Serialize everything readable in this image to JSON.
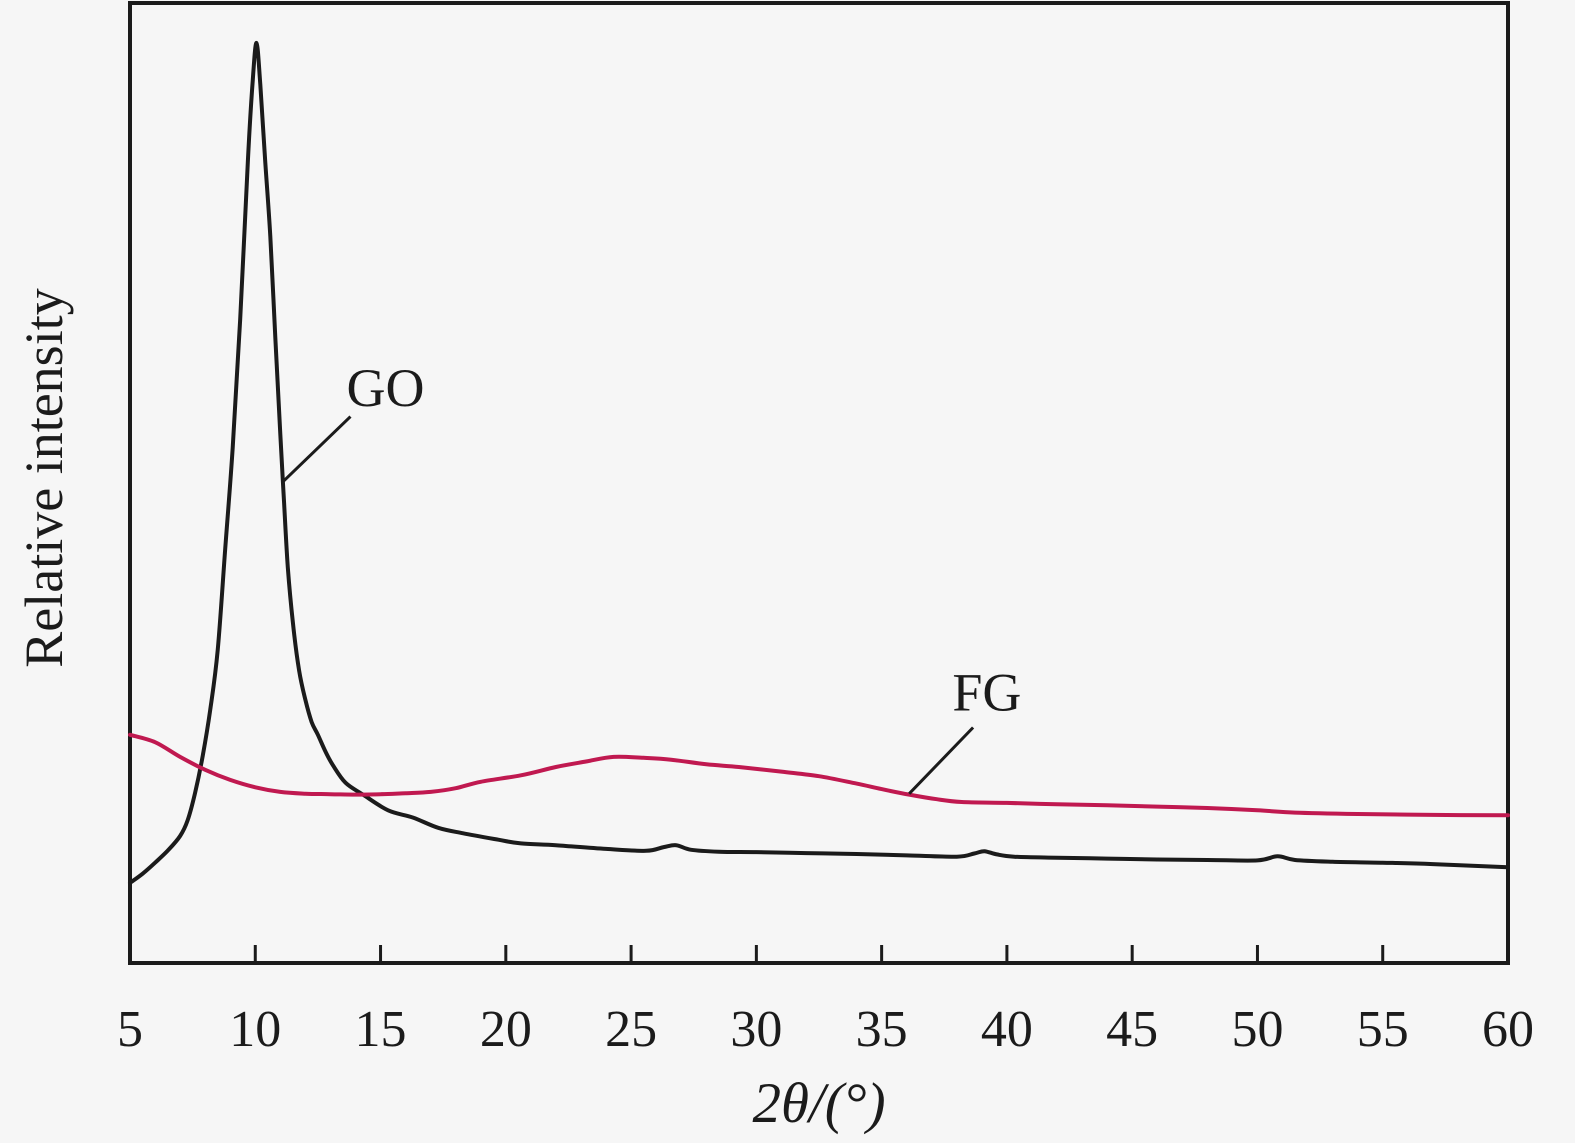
{
  "figure": {
    "background_color": "#f6f6f6",
    "frame_color": "#1b1b1b",
    "description": "XRD pattern comparing GO and FG"
  },
  "chart_data": {
    "type": "line",
    "title": "",
    "xlabel": "2θ/(°)",
    "ylabel": "Relative intensity",
    "xlim": [
      5,
      60
    ],
    "ylim": [
      0,
      105
    ],
    "x_ticks": [
      5,
      10,
      15,
      20,
      25,
      30,
      35,
      40,
      45,
      50,
      55,
      60
    ],
    "y_ticks": [],
    "grid": false,
    "legend_position": "none",
    "frame": "full-box, ticks inside on bottom axis only, y axis unnumbered (relative units)",
    "series": [
      {
        "name": "GO",
        "color": "#1b1b1b",
        "stroke_width": 4,
        "peaks_deg": [
          10.0
        ],
        "points": [
          [
            5.0,
            8.7
          ],
          [
            5.5,
            9.7
          ],
          [
            6.0,
            10.9
          ],
          [
            6.5,
            12.2
          ],
          [
            7.0,
            13.8
          ],
          [
            7.3,
            15.5
          ],
          [
            7.6,
            18.5
          ],
          [
            7.9,
            22.5
          ],
          [
            8.2,
            27.5
          ],
          [
            8.5,
            34
          ],
          [
            8.8,
            45
          ],
          [
            9.1,
            56
          ],
          [
            9.4,
            70
          ],
          [
            9.7,
            87
          ],
          [
            9.9,
            96
          ],
          [
            10.05,
            100
          ],
          [
            10.2,
            95.5
          ],
          [
            10.4,
            87
          ],
          [
            10.6,
            79
          ],
          [
            10.8,
            68
          ],
          [
            11.0,
            57.5
          ],
          [
            11.15,
            50
          ],
          [
            11.3,
            43
          ],
          [
            11.5,
            37
          ],
          [
            11.75,
            31.8
          ],
          [
            12.0,
            28.6
          ],
          [
            12.25,
            26.2
          ],
          [
            12.5,
            24.8
          ],
          [
            12.8,
            23.0
          ],
          [
            13.1,
            21.5
          ],
          [
            13.6,
            19.6
          ],
          [
            14.3,
            18.3
          ],
          [
            15.3,
            16.6
          ],
          [
            16.3,
            15.8
          ],
          [
            17.3,
            14.7
          ],
          [
            18.3,
            14.1
          ],
          [
            19.7,
            13.4
          ],
          [
            20.6,
            13.0
          ],
          [
            22.0,
            12.8
          ],
          [
            24.0,
            12.4
          ],
          [
            25.6,
            12.2
          ],
          [
            26.3,
            12.6
          ],
          [
            26.8,
            12.8
          ],
          [
            27.4,
            12.3
          ],
          [
            28.5,
            12.1
          ],
          [
            30.0,
            12.05
          ],
          [
            32.0,
            11.95
          ],
          [
            34.0,
            11.85
          ],
          [
            36.0,
            11.7
          ],
          [
            38.0,
            11.55
          ],
          [
            38.7,
            11.9
          ],
          [
            39.1,
            12.15
          ],
          [
            39.6,
            11.8
          ],
          [
            40.3,
            11.55
          ],
          [
            42.0,
            11.45
          ],
          [
            44.0,
            11.35
          ],
          [
            46.0,
            11.25
          ],
          [
            48.0,
            11.2
          ],
          [
            50.0,
            11.15
          ],
          [
            50.8,
            11.6
          ],
          [
            51.5,
            11.2
          ],
          [
            53.0,
            11.0
          ],
          [
            55.0,
            10.9
          ],
          [
            57.0,
            10.75
          ],
          [
            60.0,
            10.4
          ]
        ]
      },
      {
        "name": "FG",
        "color": "#c01950",
        "stroke_width": 4,
        "peaks_deg": [
          24.3
        ],
        "points": [
          [
            5.0,
            24.8
          ],
          [
            6.0,
            24.0
          ],
          [
            7.0,
            22.4
          ],
          [
            8.0,
            21.0
          ],
          [
            9.0,
            19.9
          ],
          [
            10.0,
            19.1
          ],
          [
            11.0,
            18.6
          ],
          [
            12.0,
            18.4
          ],
          [
            13.0,
            18.35
          ],
          [
            14.0,
            18.3
          ],
          [
            15.0,
            18.35
          ],
          [
            16.0,
            18.45
          ],
          [
            17.0,
            18.6
          ],
          [
            18.0,
            19.0
          ],
          [
            19.0,
            19.7
          ],
          [
            20.6,
            20.4
          ],
          [
            22.0,
            21.3
          ],
          [
            23.2,
            21.9
          ],
          [
            24.3,
            22.4
          ],
          [
            25.5,
            22.3
          ],
          [
            26.6,
            22.1
          ],
          [
            28.0,
            21.6
          ],
          [
            29.3,
            21.3
          ],
          [
            31.0,
            20.8
          ],
          [
            32.5,
            20.3
          ],
          [
            34.0,
            19.5
          ],
          [
            35.0,
            18.9
          ],
          [
            36.1,
            18.3
          ],
          [
            37.2,
            17.8
          ],
          [
            38.2,
            17.5
          ],
          [
            40.0,
            17.4
          ],
          [
            42.0,
            17.25
          ],
          [
            44.0,
            17.15
          ],
          [
            46.0,
            17.0
          ],
          [
            48.0,
            16.85
          ],
          [
            50.0,
            16.6
          ],
          [
            51.5,
            16.35
          ],
          [
            54.0,
            16.2
          ],
          [
            57.0,
            16.1
          ],
          [
            60.0,
            16.05
          ]
        ]
      }
    ],
    "annotations": [
      {
        "text": "GO",
        "series": "GO",
        "text_xy": [
          15.2,
          62.6
        ],
        "leader": [
          [
            13.8,
            59.4
          ],
          [
            11.1,
            52.3
          ]
        ],
        "leader_color": "#1b1b1b"
      },
      {
        "text": "FG",
        "series": "FG",
        "text_xy": [
          39.2,
          29.5
        ],
        "leader": [
          [
            38.65,
            25.6
          ],
          [
            36.1,
            18.4
          ]
        ],
        "leader_color": "#1b1b1b"
      }
    ]
  }
}
